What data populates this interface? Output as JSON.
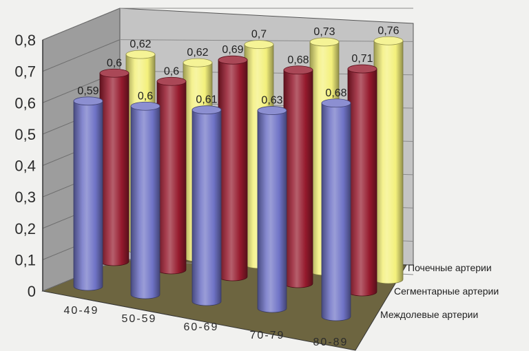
{
  "chart_data": {
    "type": "bar",
    "categories": [
      "40-49",
      "50-59",
      "60-69",
      "70-79",
      "80-89"
    ],
    "series": [
      {
        "name": "Междолевые артерии",
        "values": [
          0.59,
          0.6,
          0.61,
          0.63,
          0.68
        ],
        "color": "#6f73c6"
      },
      {
        "name": "Сегментарные артерии",
        "values": [
          0.6,
          0.6,
          0.69,
          0.68,
          0.71
        ],
        "color": "#951a2d"
      },
      {
        "name": "Почечные артерии",
        "values": [
          0.62,
          0.62,
          0.7,
          0.73,
          0.76
        ],
        "color": "#f3f07c"
      }
    ],
    "data_labels": {
      "Междолевые артерии": [
        "0,59",
        "0,6",
        "0,61",
        "0,63",
        "0,68"
      ],
      "Сегментарные артерии": [
        "0,6",
        "0,6",
        "0,69",
        "0,68",
        "0,71"
      ],
      "Почечные артерии": [
        "0,62",
        "0,62",
        "0,7",
        "0,73",
        "0,76"
      ]
    },
    "yticks": [
      "0",
      "0,1",
      "0,2",
      "0,3",
      "0,4",
      "0,5",
      "0,6",
      "0,7",
      "0,8"
    ],
    "ylim": [
      0,
      0.8
    ],
    "legend_position": "right",
    "grid": true,
    "style": "3d-cylinder",
    "wall_color": "#c4c4c4",
    "floor_color": "#6d6540"
  }
}
